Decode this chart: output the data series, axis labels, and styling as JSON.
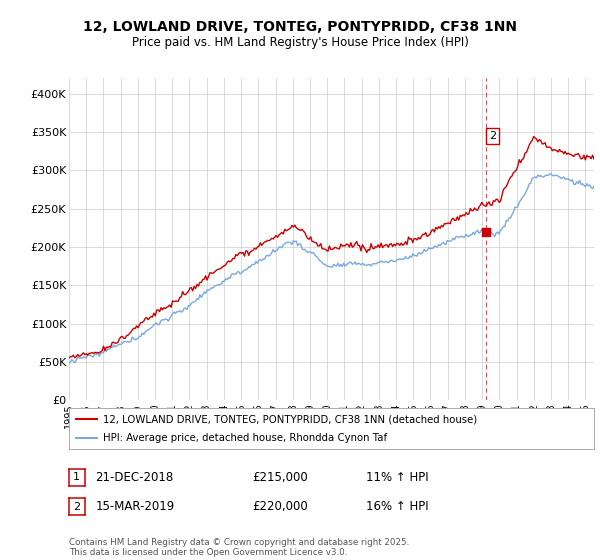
{
  "title": "12, LOWLAND DRIVE, TONTEG, PONTYPRIDD, CF38 1NN",
  "subtitle": "Price paid vs. HM Land Registry's House Price Index (HPI)",
  "legend_line1": "12, LOWLAND DRIVE, TONTEG, PONTYPRIDD, CF38 1NN (detached house)",
  "legend_line2": "HPI: Average price, detached house, Rhondda Cynon Taf",
  "footnote": "Contains HM Land Registry data © Crown copyright and database right 2025.\nThis data is licensed under the Open Government Licence v3.0.",
  "transaction1_label": "1",
  "transaction1_date": "21-DEC-2018",
  "transaction1_price": "£215,000",
  "transaction1_hpi": "11% ↑ HPI",
  "transaction2_label": "2",
  "transaction2_date": "15-MAR-2019",
  "transaction2_price": "£220,000",
  "transaction2_hpi": "16% ↑ HPI",
  "marker1_year": 2018.96,
  "marker2_year": 2019.21,
  "marker1_price": 215000,
  "marker2_price": 220000,
  "red_color": "#cc0000",
  "blue_color": "#7aaadd",
  "dashed_color": "#dd4444",
  "background_color": "#ffffff",
  "grid_color": "#cccccc",
  "ylim": [
    0,
    420000
  ],
  "yticks": [
    0,
    50000,
    100000,
    150000,
    200000,
    250000,
    300000,
    350000,
    400000
  ],
  "ytick_labels": [
    "£0",
    "£50K",
    "£100K",
    "£150K",
    "£200K",
    "£250K",
    "£300K",
    "£350K",
    "£400K"
  ],
  "xlim_start": 1995,
  "xlim_end": 2025.5
}
